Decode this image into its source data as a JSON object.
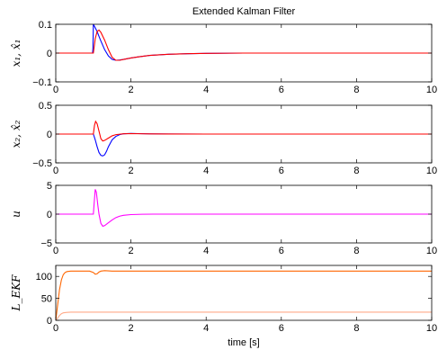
{
  "chart_data": [
    {
      "type": "line",
      "title": "Extended Kalman Filter",
      "xlabel": "",
      "ylabel": "x₁, x̂₁",
      "xlim": [
        0,
        10
      ],
      "ylim": [
        -0.1,
        0.1
      ],
      "xticks": [
        0,
        2,
        4,
        6,
        8,
        10
      ],
      "yticks": [
        -0.1,
        0,
        0.1
      ],
      "xtick_labels": [
        "0",
        "2",
        "4",
        "6",
        "8",
        "10"
      ],
      "ytick_labels": [
        "−0.1",
        "0",
        "0.1"
      ],
      "grid": false,
      "series": [
        {
          "color": "#0000ff",
          "x": [
            0,
            0.98,
            0.99,
            1.0,
            1.05,
            1.1,
            1.15,
            1.2,
            1.3,
            1.4,
            1.5,
            1.6,
            1.7,
            1.8,
            2.0,
            2.2,
            2.5,
            3.0,
            3.5,
            4.0,
            5.0,
            6.0,
            8.0,
            10.0
          ],
          "y": [
            0,
            0,
            0.02,
            0.1,
            0.088,
            0.075,
            0.058,
            0.042,
            0.012,
            -0.01,
            -0.022,
            -0.025,
            -0.024,
            -0.022,
            -0.017,
            -0.013,
            -0.008,
            -0.004,
            -0.002,
            -0.001,
            0,
            0,
            0,
            0
          ]
        },
        {
          "color": "#ff0000",
          "x": [
            0,
            1.0,
            1.05,
            1.1,
            1.15,
            1.2,
            1.3,
            1.4,
            1.5,
            1.6,
            1.7,
            1.8,
            2.0,
            2.2,
            2.5,
            3.0,
            3.5,
            4.0,
            5.0,
            6.0,
            8.0,
            10.0
          ],
          "y": [
            0,
            0,
            0.05,
            0.075,
            0.08,
            0.072,
            0.045,
            0.012,
            -0.015,
            -0.025,
            -0.025,
            -0.022,
            -0.017,
            -0.013,
            -0.008,
            -0.004,
            -0.002,
            -0.001,
            0,
            0,
            0,
            0
          ]
        }
      ]
    },
    {
      "type": "line",
      "title": "",
      "xlabel": "",
      "ylabel": "x₂, x̂₂",
      "xlim": [
        0,
        10
      ],
      "ylim": [
        -0.5,
        0.5
      ],
      "xticks": [
        0,
        2,
        4,
        6,
        8,
        10
      ],
      "yticks": [
        -0.5,
        0,
        0.5
      ],
      "xtick_labels": [
        "0",
        "2",
        "4",
        "6",
        "8",
        "10"
      ],
      "ytick_labels": [
        "−0.5",
        "0",
        "0.5"
      ],
      "grid": false,
      "series": [
        {
          "color": "#0000ff",
          "x": [
            0,
            1.0,
            1.05,
            1.1,
            1.15,
            1.2,
            1.25,
            1.3,
            1.35,
            1.4,
            1.5,
            1.6,
            1.7,
            1.8,
            2.0,
            2.2,
            2.5,
            3.0,
            4.0,
            6.0,
            10.0
          ],
          "y": [
            0,
            0,
            -0.1,
            -0.22,
            -0.32,
            -0.37,
            -0.38,
            -0.36,
            -0.3,
            -0.22,
            -0.1,
            -0.04,
            -0.01,
            0.005,
            0.01,
            0.008,
            0.004,
            0.001,
            0,
            0,
            0
          ]
        },
        {
          "color": "#ff0000",
          "x": [
            0,
            1.0,
            1.03,
            1.06,
            1.1,
            1.15,
            1.2,
            1.25,
            1.3,
            1.4,
            1.5,
            1.6,
            1.8,
            2.0,
            2.5,
            3.0,
            4.0,
            6.0,
            10.0
          ],
          "y": [
            0,
            0,
            0.15,
            0.22,
            0.18,
            0.05,
            -0.08,
            -0.12,
            -0.11,
            -0.07,
            -0.03,
            -0.01,
            0.005,
            0.008,
            0.003,
            0.001,
            0,
            0,
            0
          ]
        }
      ]
    },
    {
      "type": "line",
      "title": "",
      "xlabel": "",
      "ylabel": "u",
      "xlim": [
        0,
        10
      ],
      "ylim": [
        -5,
        5
      ],
      "xticks": [
        0,
        2,
        4,
        6,
        8,
        10
      ],
      "yticks": [
        -5,
        0,
        5
      ],
      "xtick_labels": [
        "0",
        "2",
        "4",
        "6",
        "8",
        "10"
      ],
      "ytick_labels": [
        "−5",
        "0",
        "5"
      ],
      "grid": false,
      "series": [
        {
          "color": "#ff00ff",
          "x": [
            0,
            1.0,
            1.02,
            1.05,
            1.08,
            1.12,
            1.15,
            1.2,
            1.25,
            1.3,
            1.4,
            1.5,
            1.6,
            1.7,
            1.8,
            2.0,
            2.3,
            2.6,
            3.0,
            4.0,
            10.0
          ],
          "y": [
            0,
            0,
            1.8,
            4.3,
            3.8,
            1.5,
            0,
            -1.6,
            -2.1,
            -2.0,
            -1.5,
            -1.0,
            -0.6,
            -0.35,
            -0.2,
            -0.08,
            -0.02,
            0,
            0,
            0,
            0
          ]
        }
      ]
    },
    {
      "type": "line",
      "title": "",
      "xlabel": "time [s]",
      "ylabel": "L_EKF",
      "xlim": [
        0,
        10
      ],
      "ylim": [
        0,
        125
      ],
      "xticks": [
        0,
        2,
        4,
        6,
        8,
        10
      ],
      "yticks": [
        0,
        50,
        100
      ],
      "xtick_labels": [
        "0",
        "2",
        "4",
        "6",
        "8",
        "10"
      ],
      "ytick_labels": [
        "0",
        "50",
        "100"
      ],
      "grid": false,
      "series": [
        {
          "color": "#ff6600",
          "x": [
            0,
            0.05,
            0.1,
            0.15,
            0.2,
            0.25,
            0.3,
            0.4,
            0.5,
            0.6,
            0.9,
            1.0,
            1.05,
            1.1,
            1.15,
            1.2,
            1.3,
            1.5,
            2.0,
            4.0,
            6.0,
            8.0,
            10.0
          ],
          "y": [
            0,
            35,
            70,
            92,
            104,
            109,
            111,
            112,
            112,
            112,
            112,
            109,
            105,
            106,
            110,
            112,
            113,
            112,
            112,
            112,
            112,
            112,
            112
          ]
        },
        {
          "color": "#ffaa88",
          "x": [
            0,
            0.05,
            0.1,
            0.15,
            0.2,
            0.3,
            0.4,
            0.5,
            1.0,
            2.0,
            4.0,
            6.0,
            8.0,
            10.0
          ],
          "y": [
            0,
            5,
            11,
            15,
            17,
            18,
            18.5,
            18.5,
            18.5,
            18.5,
            18.5,
            18.5,
            18.5,
            18.5
          ]
        }
      ]
    }
  ]
}
